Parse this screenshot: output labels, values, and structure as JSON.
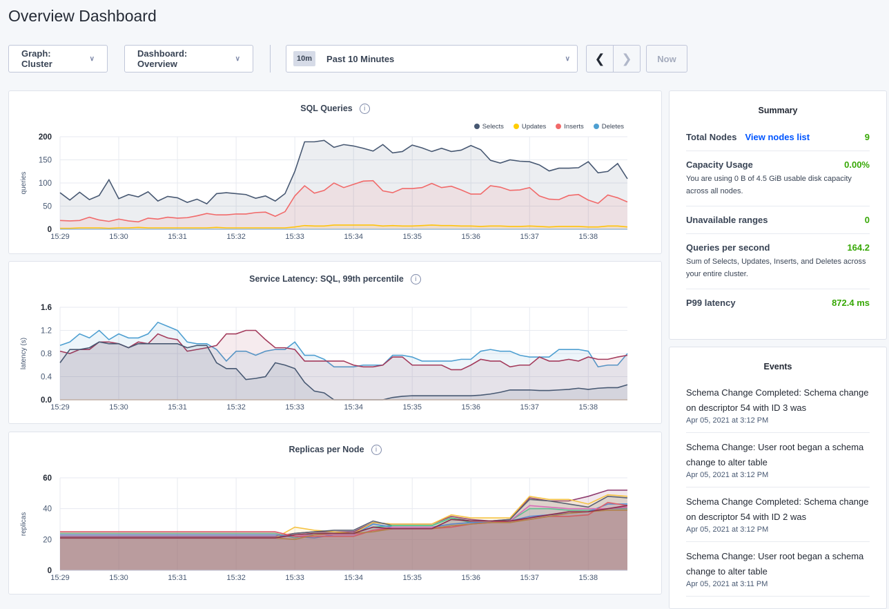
{
  "page_title": "Overview Dashboard",
  "controls": {
    "graph": "Graph: Cluster",
    "dashboard": "Dashboard: Overview",
    "time_badge": "10m",
    "time_range": "Past 10 Minutes",
    "now": "Now"
  },
  "summary": {
    "title": "Summary",
    "rows": [
      {
        "label": "Total Nodes",
        "link": "View nodes list",
        "value": "9"
      },
      {
        "label": "Capacity Usage",
        "value": "0.00%",
        "desc": "You are using 0 B of 4.5 GiB usable disk capacity across all nodes."
      },
      {
        "label": "Unavailable ranges",
        "value": "0"
      },
      {
        "label": "Queries per second",
        "value": "164.2",
        "desc": "Sum of Selects, Updates, Inserts, and Deletes across your entire cluster."
      },
      {
        "label": "P99 latency",
        "value": "872.4 ms"
      }
    ]
  },
  "events": {
    "title": "Events",
    "items": [
      {
        "text": "Schema Change Completed: Schema change on descriptor 54 with ID 3 was",
        "date": "Apr 05, 2021 at 3:12 PM"
      },
      {
        "text": "Schema Change: User root began a schema change to alter table",
        "date": "Apr 05, 2021 at 3:12 PM"
      },
      {
        "text": "Schema Change Completed: Schema change on descriptor 54 with ID 2 was",
        "date": "Apr 05, 2021 at 3:12 PM"
      },
      {
        "text": "Schema Change: User root began a schema change to alter table",
        "date": "Apr 05, 2021 at 3:11 PM"
      }
    ]
  },
  "colors": {
    "positive": "#37a806",
    "link": "#0055ff"
  },
  "chart_data": [
    {
      "type": "area",
      "title": "SQL Queries",
      "ylabel": "queries",
      "ylim": [
        0,
        200
      ],
      "yticks": [
        "0",
        "50",
        "100",
        "150",
        "200"
      ],
      "xticks": [
        "15:29",
        "15:30",
        "15:31",
        "15:32",
        "15:33",
        "15:34",
        "15:35",
        "15:36",
        "15:37",
        "15:38"
      ],
      "xrange": [
        "15:29:00",
        "15:38:40"
      ],
      "legend": "top-right",
      "series": [
        {
          "name": "Selects",
          "color": "#475872",
          "values": [
            79,
            63,
            80,
            64,
            73,
            107,
            66,
            75,
            70,
            81,
            61,
            71,
            68,
            58,
            65,
            55,
            77,
            79,
            77,
            75,
            67,
            72,
            61,
            77,
            125,
            189,
            189,
            192,
            177,
            183,
            180,
            175,
            169,
            183,
            165,
            168,
            182,
            176,
            168,
            175,
            168,
            171,
            181,
            172,
            149,
            143,
            150,
            147,
            146,
            139,
            126,
            132,
            132,
            133,
            146,
            122,
            125,
            142,
            109
          ]
        },
        {
          "name": "Updates",
          "color": "#ffcd02",
          "values": [
            2,
            2,
            3,
            3,
            3,
            2,
            3,
            3,
            4,
            3,
            3,
            3,
            3,
            3,
            3,
            3,
            4,
            3,
            3,
            3,
            3,
            3,
            3,
            3,
            5,
            8,
            7,
            7,
            9,
            9,
            9,
            9,
            9,
            7,
            8,
            7,
            7,
            8,
            9,
            8,
            8,
            7,
            7,
            6,
            7,
            7,
            6,
            6,
            7,
            6,
            5,
            6,
            6,
            6,
            5,
            5,
            7,
            7,
            5
          ]
        },
        {
          "name": "Inserts",
          "color": "#f16969",
          "values": [
            19,
            18,
            19,
            26,
            20,
            17,
            22,
            18,
            16,
            24,
            22,
            26,
            24,
            25,
            29,
            34,
            31,
            31,
            33,
            33,
            36,
            37,
            28,
            38,
            72,
            94,
            78,
            84,
            100,
            90,
            97,
            104,
            105,
            83,
            79,
            88,
            88,
            90,
            99,
            90,
            93,
            85,
            76,
            76,
            94,
            91,
            84,
            85,
            90,
            72,
            65,
            64,
            73,
            75,
            63,
            56,
            74,
            68,
            59
          ]
        },
        {
          "name": "Deletes",
          "color": "#4e9fd1",
          "values": [
            0,
            0,
            0,
            0,
            0,
            0,
            0,
            0,
            0,
            0,
            0,
            0,
            0,
            0,
            0,
            0,
            0,
            0,
            0,
            0,
            0,
            0,
            0,
            0,
            0,
            0,
            0,
            0,
            0,
            0,
            0,
            0,
            0,
            0,
            0,
            0,
            0,
            0,
            0,
            0,
            0,
            0,
            0,
            0,
            0,
            0,
            0,
            0,
            0,
            0,
            0,
            0,
            0,
            0,
            0,
            0,
            0,
            0,
            0
          ]
        }
      ]
    },
    {
      "type": "area",
      "title": "Service Latency: SQL, 99th percentile",
      "ylabel": "latency (s)",
      "ylim": [
        0,
        1.6
      ],
      "yticks": [
        "0.0",
        "0.4",
        "0.8",
        "1.2",
        "1.6"
      ],
      "xticks": [
        "15:29",
        "15:30",
        "15:31",
        "15:32",
        "15:33",
        "15:34",
        "15:35",
        "15:36",
        "15:37",
        "15:38"
      ],
      "xrange": [
        "15:29:00",
        "15:38:40"
      ],
      "series": [
        {
          "color": "#4e9fd1",
          "values": [
            0.94,
            1.0,
            1.14,
            1.07,
            1.2,
            1.04,
            1.14,
            1.07,
            1.07,
            1.14,
            1.34,
            1.27,
            1.2,
            1.0,
            0.97,
            0.97,
            0.87,
            0.67,
            0.84,
            0.84,
            0.77,
            0.84,
            0.87,
            0.87,
            1.0,
            0.77,
            0.77,
            0.7,
            0.57,
            0.57,
            0.57,
            0.6,
            0.6,
            0.6,
            0.77,
            0.77,
            0.74,
            0.67,
            0.67,
            0.67,
            0.67,
            0.7,
            0.7,
            0.84,
            0.87,
            0.84,
            0.84,
            0.77,
            0.74,
            0.74,
            0.74,
            0.87,
            0.87,
            0.87,
            0.84,
            0.57,
            0.6,
            0.6,
            0.8
          ]
        },
        {
          "color": "#a33a5b",
          "values": [
            0.84,
            0.8,
            0.87,
            0.87,
            1.0,
            1.0,
            0.97,
            0.9,
            1.0,
            0.97,
            1.14,
            1.07,
            1.04,
            0.84,
            0.87,
            0.9,
            0.94,
            1.14,
            1.14,
            1.2,
            1.2,
            1.04,
            0.9,
            0.9,
            0.87,
            0.67,
            0.67,
            0.67,
            0.67,
            0.67,
            0.6,
            0.57,
            0.57,
            0.6,
            0.74,
            0.74,
            0.6,
            0.6,
            0.6,
            0.6,
            0.52,
            0.52,
            0.6,
            0.7,
            0.67,
            0.67,
            0.57,
            0.6,
            0.6,
            0.74,
            0.67,
            0.67,
            0.7,
            0.67,
            0.74,
            0.7,
            0.7,
            0.74,
            0.77
          ]
        },
        {
          "color": "#475872",
          "values": [
            0.64,
            0.87,
            0.87,
            0.9,
            1.0,
            0.97,
            0.97,
            0.9,
            0.97,
            0.97,
            0.97,
            0.97,
            0.97,
            0.9,
            0.94,
            0.94,
            0.64,
            0.54,
            0.54,
            0.35,
            0.37,
            0.4,
            0.64,
            0.6,
            0.54,
            0.3,
            0.15,
            0.12,
            0,
            0,
            0,
            0,
            0,
            0,
            0.04,
            0.06,
            0.07,
            0.07,
            0.07,
            0.07,
            0.07,
            0.07,
            0.07,
            0.08,
            0.1,
            0.13,
            0.17,
            0.17,
            0.17,
            0.16,
            0.16,
            0.17,
            0.18,
            0.2,
            0.18,
            0.2,
            0.21,
            0.21,
            0.26
          ]
        },
        {
          "color": "#c27e3a",
          "values": [
            0,
            0,
            0,
            0,
            0,
            0,
            0,
            0,
            0,
            0,
            0,
            0,
            0,
            0,
            0,
            0,
            0,
            0,
            0,
            0,
            0,
            0,
            0,
            0,
            0,
            0,
            0,
            0,
            0,
            0,
            0,
            0,
            0,
            0,
            0,
            0,
            0,
            0,
            0,
            0,
            0,
            0,
            0,
            0,
            0,
            0,
            0,
            0,
            0,
            0,
            0,
            0,
            0,
            0,
            0,
            0,
            0,
            0,
            0
          ]
        }
      ]
    },
    {
      "type": "area",
      "title": "Replicas per Node",
      "ylabel": "replicas",
      "ylim": [
        0,
        60
      ],
      "yticks": [
        "0",
        "20",
        "40",
        "60"
      ],
      "xticks": [
        "15:29",
        "15:30",
        "15:31",
        "15:32",
        "15:33",
        "15:34",
        "15:35",
        "15:36",
        "15:37",
        "15:38"
      ],
      "xrange": [
        "15:29:00",
        "15:38:40"
      ],
      "series": [
        {
          "color": "#8e3b6e",
          "values": [
            22,
            22,
            22,
            22,
            22,
            22,
            22,
            22,
            22,
            22,
            22,
            22,
            24,
            25,
            25,
            25,
            31,
            30,
            30,
            30,
            35,
            33,
            32,
            33,
            47,
            45,
            45,
            48,
            52,
            52
          ]
        },
        {
          "color": "#f5c343",
          "values": [
            21,
            21,
            21,
            21,
            21,
            21,
            21,
            21,
            21,
            21,
            21,
            21,
            28,
            26,
            25,
            24,
            31,
            30,
            30,
            30,
            36,
            34,
            34,
            34,
            48,
            46,
            46,
            43,
            49,
            48
          ]
        },
        {
          "color": "#5a6072",
          "values": [
            21,
            21,
            21,
            21,
            21,
            21,
            21,
            21,
            21,
            21,
            21,
            21,
            24,
            25,
            26,
            26,
            32,
            29,
            29,
            29,
            34,
            32,
            32,
            33,
            46,
            45,
            43,
            41,
            48,
            47
          ]
        },
        {
          "color": "#4fc98b",
          "values": [
            24,
            24,
            24,
            24,
            24,
            24,
            24,
            24,
            24,
            24,
            24,
            24,
            21,
            24,
            24,
            24,
            28,
            29,
            29,
            29,
            34,
            31,
            31,
            32,
            40,
            40,
            39,
            39,
            40,
            40
          ]
        },
        {
          "color": "#4f8fd6",
          "values": [
            23,
            23,
            23,
            23,
            23,
            23,
            23,
            23,
            23,
            23,
            23,
            23,
            22,
            21,
            23,
            23,
            30,
            28,
            28,
            28,
            30,
            31,
            31,
            32,
            35,
            36,
            37,
            38,
            43,
            43
          ]
        },
        {
          "color": "#d76fb7",
          "values": [
            25,
            25,
            25,
            25,
            25,
            25,
            25,
            25,
            25,
            25,
            25,
            25,
            22,
            23,
            23,
            23,
            26,
            28,
            28,
            28,
            28,
            30,
            31,
            32,
            42,
            41,
            40,
            40,
            40,
            41
          ]
        },
        {
          "color": "#e0606a",
          "values": [
            25,
            25,
            25,
            25,
            25,
            25,
            25,
            25,
            25,
            25,
            25,
            25,
            22,
            22,
            22,
            22,
            26,
            27,
            27,
            27,
            28,
            30,
            31,
            32,
            33,
            35,
            35,
            36,
            44,
            42
          ]
        },
        {
          "color": "#b78f4a",
          "values": [
            21,
            21,
            21,
            21,
            21,
            21,
            21,
            21,
            21,
            21,
            21,
            21,
            20,
            23,
            24,
            24,
            25,
            27,
            27,
            27,
            29,
            30,
            31,
            31,
            33,
            35,
            37,
            38,
            39,
            39
          ]
        },
        {
          "color": "#8a2c4a",
          "values": [
            21,
            21,
            21,
            21,
            21,
            21,
            21,
            21,
            21,
            21,
            21,
            21,
            23,
            24,
            24,
            24,
            28,
            27,
            27,
            27,
            33,
            32,
            32,
            32,
            34,
            36,
            38,
            38,
            40,
            42
          ]
        }
      ]
    }
  ]
}
